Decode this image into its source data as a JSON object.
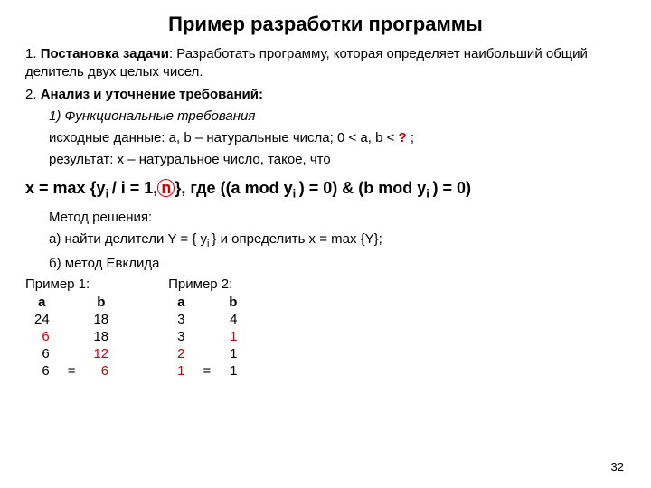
{
  "title": "Пример разработки программы",
  "p1_prefix": "1. ",
  "p1_bold": "Постановка задачи",
  "p1_rest": ": Разработать программу, которая определяет наибольший общий делитель двух целых чисел.",
  "p2_prefix": "2. ",
  "p2_bold": "Анализ и уточнение требований:",
  "req1": "1) Функциональные требования",
  "data_pre": "исходные данные: a, b – натуральные числа; 0 < a, b < ",
  "data_q": "?",
  "data_post": " ;",
  "result_line": "результат: x – натуральное число, такое, что",
  "formula_pre": "x = max {y",
  "formula_i1": "i ",
  "formula_mid1": "/ i = 1,",
  "formula_n": "n",
  "formula_mid2": "}, где ((a mod y",
  "formula_i2": "i ",
  "formula_mid3": ") = 0) & (b mod y",
  "formula_i3": "i ",
  "formula_end": ") = 0)",
  "method_label": "Метод решения:",
  "method_a_pre": "а) найти делители Y = { y",
  "method_a_i": "i ",
  "method_a_post": "} и определить x = max {Y};",
  "method_b": "б) метод Евклида",
  "ex1_label": "Пример 1:",
  "ex2_label": "Пример 2:",
  "hd_a": "a",
  "hd_b": "b",
  "eq": "=",
  "ex1": {
    "rows": [
      {
        "a": "24",
        "a_red": false,
        "b": "18",
        "b_red": false,
        "eq": false
      },
      {
        "a": "6",
        "a_red": true,
        "b": "18",
        "b_red": false,
        "eq": false
      },
      {
        "a": "6",
        "a_red": false,
        "b": "12",
        "b_red": true,
        "eq": false
      },
      {
        "a": "6",
        "a_red": false,
        "b": "6",
        "b_red": true,
        "eq": true
      }
    ]
  },
  "ex2": {
    "rows": [
      {
        "a": "3",
        "a_red": false,
        "b": "4",
        "b_red": false,
        "eq": false
      },
      {
        "a": "3",
        "a_red": false,
        "b": "1",
        "b_red": true,
        "eq": false
      },
      {
        "a": "2",
        "a_red": true,
        "b": "1",
        "b_red": false,
        "eq": false
      },
      {
        "a": "1",
        "a_red": true,
        "b": "1",
        "b_red": false,
        "eq": true
      }
    ]
  },
  "pagenum": "32",
  "colors": {
    "text": "#000000",
    "red": "#cc0000",
    "background": "#ffffff"
  }
}
